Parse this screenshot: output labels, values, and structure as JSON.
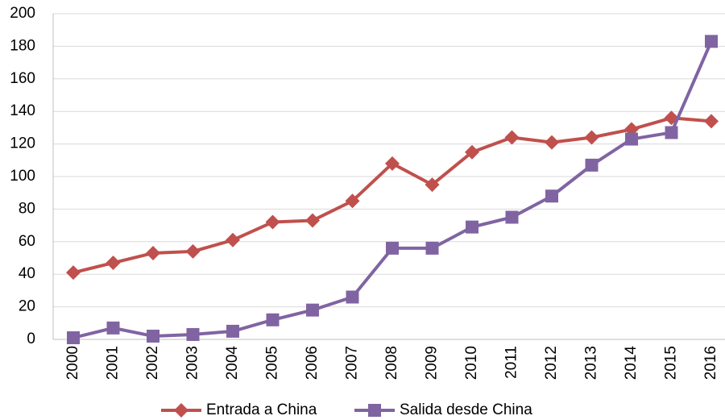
{
  "chart_data": {
    "type": "line",
    "categories": [
      "2000",
      "2001",
      "2002",
      "2003",
      "2004",
      "2005",
      "2006",
      "2007",
      "2008",
      "2009",
      "2010",
      "2011",
      "2012",
      "2013",
      "2014",
      "2015",
      "2016"
    ],
    "series": [
      {
        "name": "Entrada a China",
        "color": "#c0504d",
        "marker": "diamond",
        "values": [
          41,
          47,
          53,
          54,
          61,
          72,
          73,
          85,
          108,
          95,
          115,
          124,
          121,
          124,
          129,
          136,
          134
        ]
      },
      {
        "name": "Salida desde China",
        "color": "#8064a2",
        "marker": "square",
        "values": [
          1,
          7,
          2,
          3,
          5,
          12,
          18,
          26,
          56,
          56,
          69,
          75,
          88,
          107,
          123,
          127,
          183
        ]
      }
    ],
    "ylim": [
      0,
      200
    ],
    "yticks": [
      0,
      20,
      40,
      60,
      80,
      100,
      120,
      140,
      160,
      180,
      200
    ],
    "grid": true,
    "legend": "bottom"
  }
}
